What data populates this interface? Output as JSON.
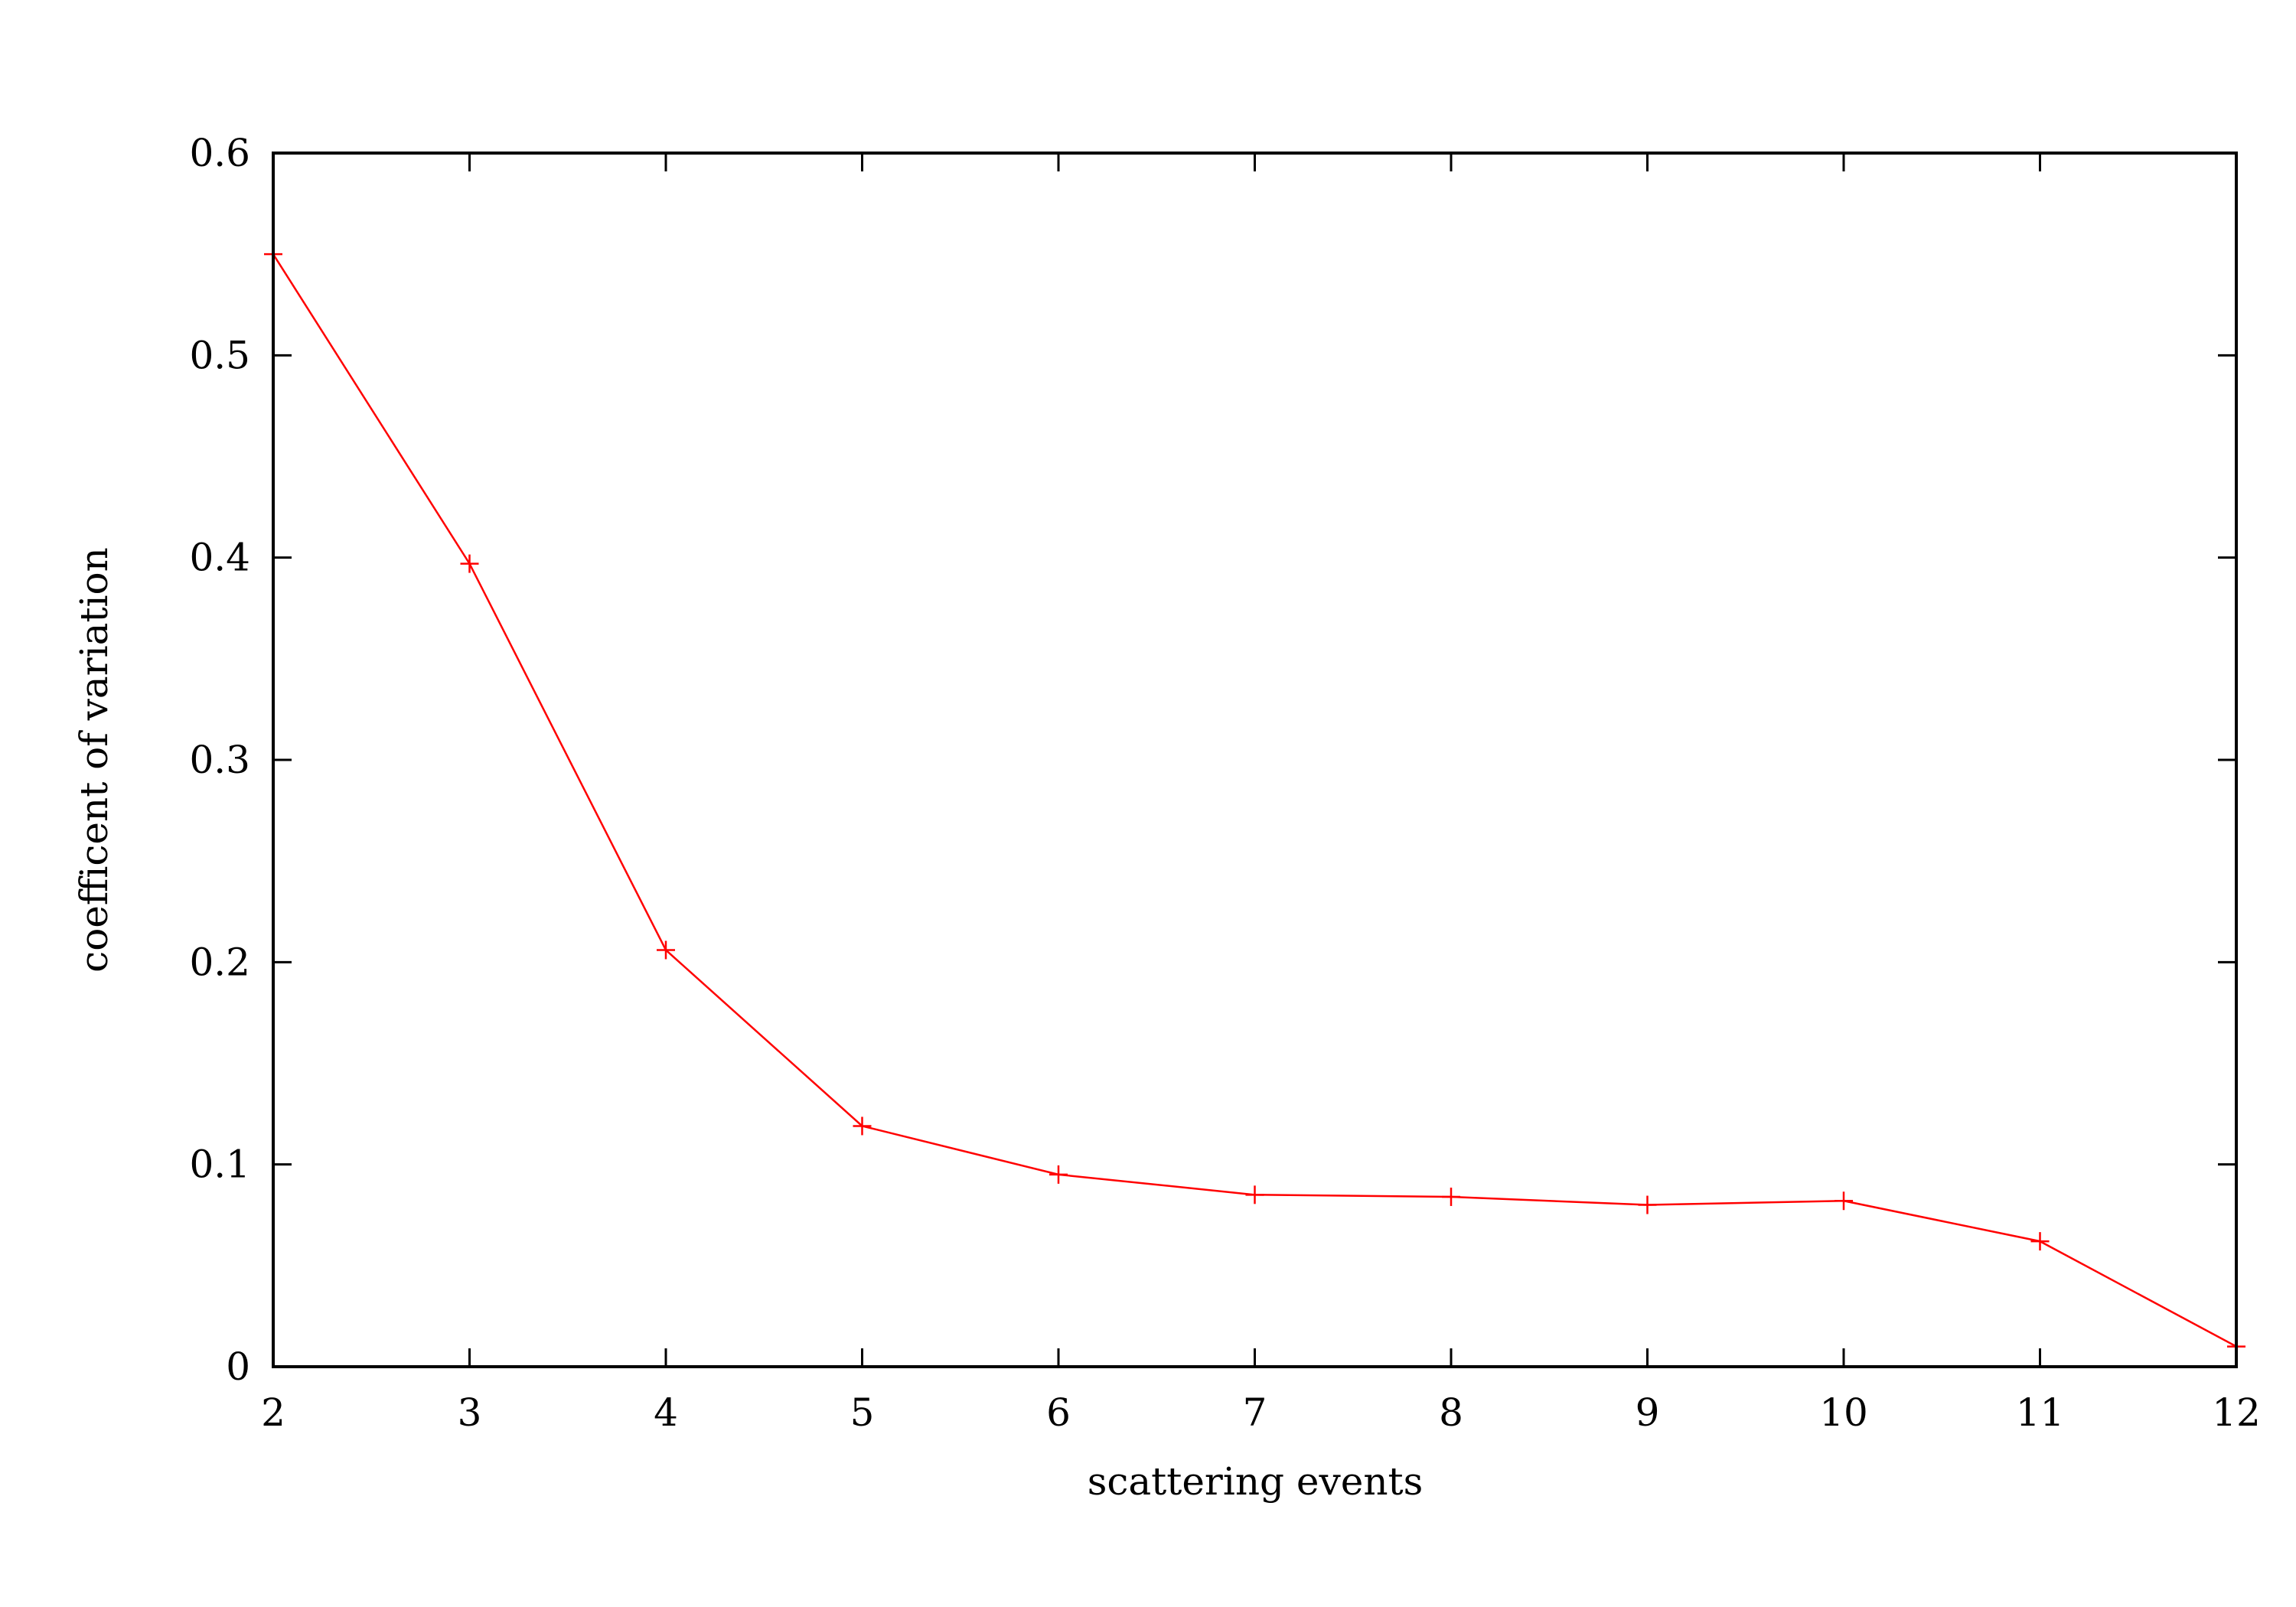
{
  "chart_data": {
    "type": "line",
    "title": "",
    "xlabel": "scattering events",
    "ylabel": "coefficent of variation",
    "xlim": [
      2,
      12
    ],
    "ylim": [
      0,
      0.6
    ],
    "xticks": [
      2,
      3,
      4,
      5,
      6,
      7,
      8,
      9,
      10,
      11,
      12
    ],
    "yticks": [
      0,
      0.1,
      0.2,
      0.3,
      0.4,
      0.5,
      0.6
    ],
    "xtick_labels": [
      "2",
      "3",
      "4",
      "5",
      "6",
      "7",
      "8",
      "9",
      "10",
      "11",
      "12"
    ],
    "ytick_labels": [
      "0",
      "0.1",
      "0.2",
      "0.3",
      "0.4",
      "0.5",
      "0.6"
    ],
    "grid": false,
    "legend": "none",
    "series": [
      {
        "color": "#ff0000",
        "marker": "plus",
        "x": [
          2,
          3,
          4,
          5,
          6,
          7,
          8,
          9,
          10,
          11,
          12
        ],
        "y": [
          0.55,
          0.397,
          0.206,
          0.119,
          0.095,
          0.085,
          0.084,
          0.08,
          0.082,
          0.062,
          0.01
        ]
      }
    ]
  }
}
